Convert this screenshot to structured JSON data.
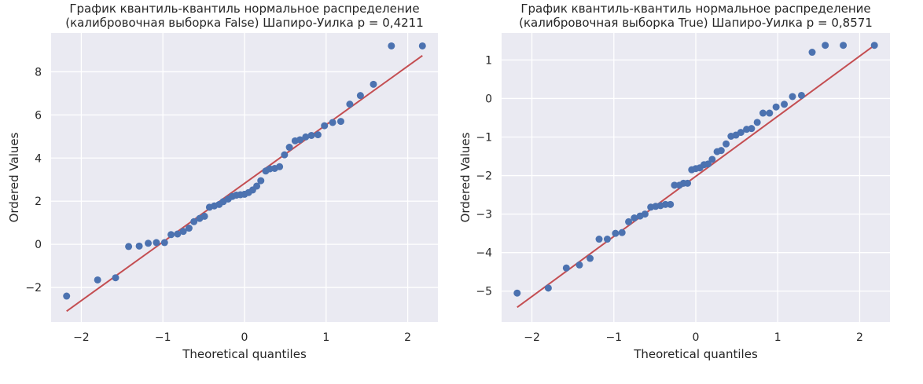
{
  "chart_data": [
    {
      "type": "scatter",
      "title_line1": "График квантиль-квантиль нормальное распределение",
      "title_line2": "(калибровочная выборка False)  Шапиро-Уилка p = 0,4211",
      "xlabel": "Theoretical quantiles",
      "ylabel": "Ordered Values",
      "xlim": [
        -2.37,
        2.37
      ],
      "ylim": [
        -3.6,
        9.8
      ],
      "xticks": [
        -2,
        -1,
        0,
        1,
        2
      ],
      "xtick_labels": [
        "−2",
        "−1",
        "0",
        "1",
        "2"
      ],
      "yticks": [
        -2,
        0,
        2,
        4,
        6,
        8
      ],
      "ytick_labels": [
        "−2",
        "0",
        "2",
        "4",
        "6",
        "8"
      ],
      "grid": true,
      "fit_line": {
        "x": [
          -2.18,
          2.18
        ],
        "y": [
          -3.1,
          8.75
        ]
      },
      "points": {
        "x": [
          -2.18,
          -1.8,
          -1.58,
          -1.42,
          -1.29,
          -1.18,
          -1.08,
          -0.98,
          -0.9,
          -0.82,
          -0.75,
          -0.68,
          -0.62,
          -0.55,
          -0.49,
          -0.43,
          -0.37,
          -0.31,
          -0.26,
          -0.2,
          -0.15,
          -0.1,
          -0.05,
          0.0,
          0.05,
          0.1,
          0.15,
          0.2,
          0.26,
          0.31,
          0.37,
          0.43,
          0.49,
          0.55,
          0.62,
          0.68,
          0.75,
          0.82,
          0.9,
          0.98,
          1.08,
          1.18,
          1.29,
          1.42,
          1.58,
          1.8,
          2.18
        ],
        "y": [
          -2.4,
          -1.65,
          -1.55,
          -0.1,
          -0.08,
          0.05,
          0.08,
          0.08,
          0.45,
          0.48,
          0.6,
          0.75,
          1.05,
          1.2,
          1.3,
          1.72,
          1.78,
          1.85,
          1.98,
          2.1,
          2.22,
          2.28,
          2.3,
          2.32,
          2.4,
          2.52,
          2.7,
          2.95,
          3.4,
          3.5,
          3.52,
          3.6,
          4.15,
          4.5,
          4.8,
          4.85,
          4.98,
          5.05,
          5.08,
          5.5,
          5.65,
          5.7,
          6.5,
          6.9,
          7.42,
          9.2,
          9.2
        ]
      }
    },
    {
      "type": "scatter",
      "title_line1": "График квантиль-квантиль нормальное распределение",
      "title_line2": "(калибровочная выборка True)  Шапиро-Уилка p = 0,8571",
      "xlabel": "Theoretical quantiles",
      "ylabel": "Ordered Values",
      "xlim": [
        -2.37,
        2.37
      ],
      "ylim": [
        -5.8,
        1.7
      ],
      "xticks": [
        -2,
        -1,
        0,
        1,
        2
      ],
      "xtick_labels": [
        "−2",
        "−1",
        "0",
        "1",
        "2"
      ],
      "yticks": [
        -5,
        -4,
        -3,
        -2,
        -1,
        0,
        1
      ],
      "ytick_labels": [
        "−5",
        "−4",
        "−3",
        "−2",
        "−1",
        "0",
        "1"
      ],
      "grid": true,
      "fit_line": {
        "x": [
          -2.18,
          2.18
        ],
        "y": [
          -5.42,
          1.38
        ]
      },
      "points": {
        "x": [
          -2.18,
          -1.8,
          -1.58,
          -1.42,
          -1.29,
          -1.18,
          -1.08,
          -0.98,
          -0.9,
          -0.82,
          -0.75,
          -0.68,
          -0.62,
          -0.55,
          -0.49,
          -0.43,
          -0.37,
          -0.31,
          -0.26,
          -0.2,
          -0.15,
          -0.1,
          -0.05,
          0.0,
          0.05,
          0.1,
          0.15,
          0.2,
          0.26,
          0.31,
          0.37,
          0.43,
          0.49,
          0.55,
          0.62,
          0.68,
          0.75,
          0.82,
          0.9,
          0.98,
          1.08,
          1.18,
          1.29,
          1.42,
          1.58,
          1.8,
          2.18
        ],
        "y": [
          -5.05,
          -4.92,
          -4.4,
          -4.32,
          -4.15,
          -3.65,
          -3.65,
          -3.5,
          -3.48,
          -3.2,
          -3.1,
          -3.05,
          -3.0,
          -2.82,
          -2.8,
          -2.78,
          -2.75,
          -2.75,
          -2.25,
          -2.25,
          -2.2,
          -2.2,
          -1.85,
          -1.82,
          -1.8,
          -1.72,
          -1.7,
          -1.58,
          -1.38,
          -1.35,
          -1.18,
          -0.98,
          -0.95,
          -0.88,
          -0.8,
          -0.78,
          -0.62,
          -0.38,
          -0.38,
          -0.22,
          -0.15,
          0.05,
          0.08,
          1.2,
          1.38,
          1.38,
          1.38
        ]
      }
    }
  ]
}
